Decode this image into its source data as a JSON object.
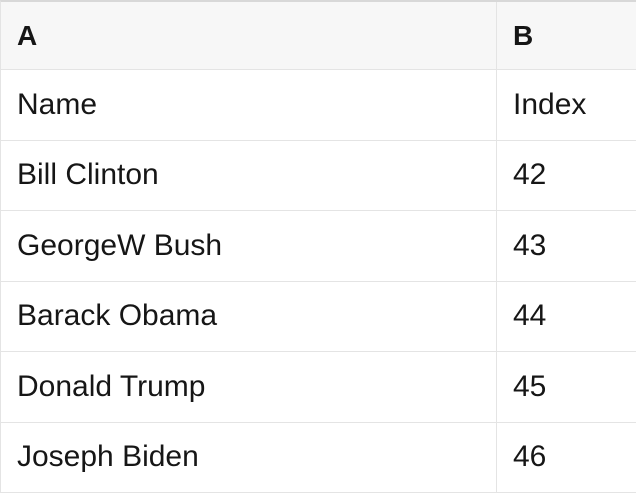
{
  "table": {
    "columns": [
      {
        "label": "A"
      },
      {
        "label": "B"
      }
    ],
    "rows": [
      {
        "A": "Name",
        "B": "Index"
      },
      {
        "A": "Bill Clinton",
        "B": "42"
      },
      {
        "A": "GeorgeW Bush",
        "B": "43"
      },
      {
        "A": "Barack Obama",
        "B": "44"
      },
      {
        "A": "Donald Trump",
        "B": "45"
      },
      {
        "A": "Joseph Biden",
        "B": "46"
      }
    ]
  },
  "colors": {
    "header_bg": "#f7f7f7",
    "row_bg": "#ffffff",
    "grid_line": "#e4e4e4",
    "top_border": "#d8d8d8",
    "text": "#161616"
  }
}
